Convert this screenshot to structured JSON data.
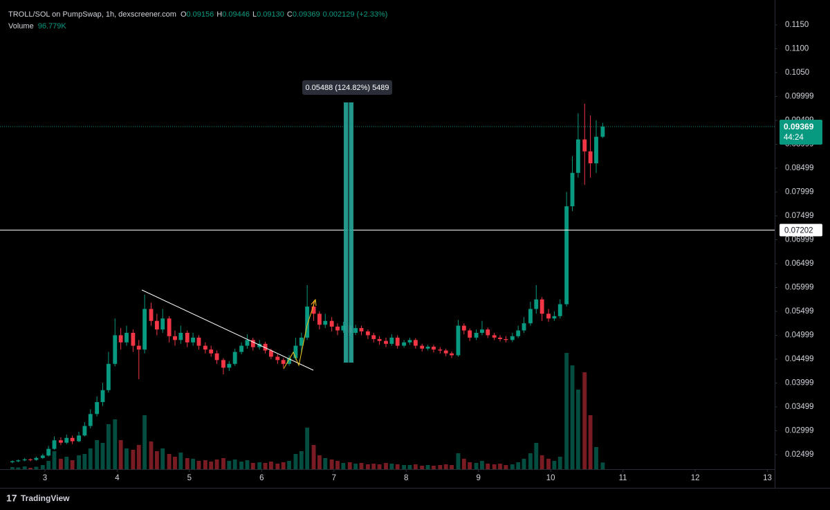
{
  "header": {
    "symbol": "TROLL/SOL on PumpSwap, 1h, dexscreener.com",
    "o_label": "O",
    "o": "0.09156",
    "h_label": "H",
    "h": "0.09446",
    "l_label": "L",
    "l": "0.09130",
    "c_label": "C",
    "c": "0.09369",
    "change": "0.002129 (+2.33%)",
    "volume_label": "Volume",
    "volume_value": "96.779K"
  },
  "chart_data": {
    "type": "candlestick",
    "up_color": "#089981",
    "down_color": "#f23645",
    "xlim": [
      2.474,
      13.1
    ],
    "xticks": [
      3,
      4,
      5,
      6,
      7,
      8,
      9,
      10,
      11,
      12,
      13
    ],
    "ylim": [
      0.02195,
      0.1202
    ],
    "yticks": [
      0.02499,
      0.02999,
      0.03499,
      0.03999,
      0.04499,
      0.04999,
      0.05499,
      0.05999,
      0.06499,
      0.06999,
      0.07499,
      0.07999,
      0.08499,
      0.08999,
      0.09499,
      0.09999,
      {
        "value": 0.105,
        "label": "0.1050"
      },
      {
        "value": 0.11,
        "label": "0.1100"
      },
      {
        "value": 0.115,
        "label": "0.1150"
      }
    ],
    "vlim": [
      0,
      1800000
    ],
    "x": [
      2.55,
      2.63,
      2.72,
      2.8,
      2.88,
      2.97,
      3.05,
      3.13,
      3.22,
      3.3,
      3.38,
      3.47,
      3.55,
      3.63,
      3.72,
      3.8,
      3.88,
      3.97,
      4.05,
      4.13,
      4.22,
      4.3,
      4.38,
      4.47,
      4.55,
      4.63,
      4.72,
      4.8,
      4.88,
      4.97,
      5.05,
      5.13,
      5.22,
      5.3,
      5.38,
      5.47,
      5.55,
      5.63,
      5.72,
      5.8,
      5.88,
      5.97,
      6.05,
      6.13,
      6.22,
      6.3,
      6.38,
      6.47,
      6.55,
      6.63,
      6.72,
      6.8,
      6.88,
      6.97,
      7.05,
      7.13,
      7.22,
      7.3,
      7.38,
      7.47,
      7.55,
      7.63,
      7.72,
      7.8,
      7.88,
      7.97,
      8.05,
      8.13,
      8.22,
      8.3,
      8.38,
      8.47,
      8.55,
      8.63,
      8.72,
      8.8,
      8.88,
      8.97,
      9.05,
      9.13,
      9.22,
      9.3,
      9.38,
      9.47,
      9.55,
      9.63,
      9.72,
      9.8,
      9.88,
      9.97,
      10.05,
      10.13,
      10.22,
      10.3,
      10.38,
      10.47,
      10.55,
      10.63,
      10.72
    ],
    "open": [
      0.0234,
      0.0236,
      0.0238,
      0.024,
      0.0239,
      0.0243,
      0.0248,
      0.0262,
      0.028,
      0.0275,
      0.0285,
      0.0278,
      0.029,
      0.031,
      0.0335,
      0.036,
      0.0385,
      0.044,
      0.05,
      0.0485,
      0.0505,
      0.0478,
      0.047,
      0.0555,
      0.053,
      0.0512,
      0.0535,
      0.0498,
      0.049,
      0.0505,
      0.0485,
      0.0495,
      0.0478,
      0.047,
      0.0462,
      0.0448,
      0.0432,
      0.044,
      0.0465,
      0.0478,
      0.049,
      0.0475,
      0.0482,
      0.0468,
      0.0455,
      0.0448,
      0.044,
      0.0452,
      0.0478,
      0.0495,
      0.056,
      0.0545,
      0.0522,
      0.053,
      0.0518,
      0.051,
      0.052,
      0.0505,
      0.0515,
      0.0508,
      0.05,
      0.0492,
      0.0488,
      0.0482,
      0.0495,
      0.0478,
      0.0485,
      0.049,
      0.0478,
      0.0472,
      0.0476,
      0.047,
      0.0468,
      0.0462,
      0.0458,
      0.052,
      0.051,
      0.0495,
      0.0505,
      0.0512,
      0.05,
      0.0495,
      0.0492,
      0.049,
      0.0498,
      0.051,
      0.0525,
      0.0555,
      0.0575,
      0.0545,
      0.0535,
      0.054,
      0.0565,
      0.077,
      0.084,
      0.091,
      0.0885,
      0.086,
      0.09156
    ],
    "high": [
      0.0238,
      0.024,
      0.0243,
      0.0242,
      0.0246,
      0.0252,
      0.0268,
      0.0288,
      0.0286,
      0.0292,
      0.029,
      0.0298,
      0.0318,
      0.0345,
      0.0372,
      0.04,
      0.0465,
      0.0535,
      0.0515,
      0.052,
      0.0512,
      0.049,
      0.0585,
      0.0568,
      0.0545,
      0.0555,
      0.054,
      0.051,
      0.052,
      0.051,
      0.0505,
      0.05,
      0.0485,
      0.0478,
      0.0468,
      0.0452,
      0.0446,
      0.0472,
      0.0485,
      0.0502,
      0.0495,
      0.049,
      0.0486,
      0.0472,
      0.046,
      0.0452,
      0.0458,
      0.0495,
      0.0505,
      0.0605,
      0.0572,
      0.055,
      0.0545,
      0.0538,
      0.0525,
      0.0528,
      0.0525,
      0.0522,
      0.052,
      0.0512,
      0.0505,
      0.0498,
      0.0495,
      0.0502,
      0.05,
      0.049,
      0.0495,
      0.0494,
      0.0482,
      0.048,
      0.048,
      0.0475,
      0.0472,
      0.0466,
      0.0532,
      0.0525,
      0.0514,
      0.0512,
      0.053,
      0.0516,
      0.0505,
      0.05,
      0.0498,
      0.0505,
      0.052,
      0.0538,
      0.057,
      0.0605,
      0.058,
      0.0555,
      0.055,
      0.0575,
      0.08,
      0.0875,
      0.0965,
      0.0985,
      0.096,
      0.095,
      0.09446
    ],
    "low": [
      0.0232,
      0.0234,
      0.0236,
      0.0236,
      0.0237,
      0.0241,
      0.0246,
      0.026,
      0.027,
      0.0272,
      0.0272,
      0.0276,
      0.0288,
      0.0305,
      0.033,
      0.0352,
      0.038,
      0.0435,
      0.047,
      0.0478,
      0.0465,
      0.0408,
      0.0462,
      0.052,
      0.05,
      0.0505,
      0.0485,
      0.0478,
      0.0482,
      0.0475,
      0.0478,
      0.047,
      0.0462,
      0.0455,
      0.044,
      0.0418,
      0.0425,
      0.0436,
      0.046,
      0.0472,
      0.0468,
      0.047,
      0.0462,
      0.045,
      0.044,
      0.0432,
      0.0436,
      0.0448,
      0.0462,
      0.049,
      0.053,
      0.0512,
      0.0515,
      0.0508,
      0.05,
      0.0505,
      0.0498,
      0.05,
      0.05,
      0.0492,
      0.0485,
      0.048,
      0.0475,
      0.0478,
      0.0472,
      0.0474,
      0.048,
      0.0472,
      0.0466,
      0.0468,
      0.0464,
      0.0462,
      0.0456,
      0.0452,
      0.0455,
      0.0502,
      0.0488,
      0.049,
      0.05,
      0.0494,
      0.049,
      0.0487,
      0.0485,
      0.0486,
      0.0494,
      0.0505,
      0.052,
      0.0545,
      0.053,
      0.0528,
      0.053,
      0.0535,
      0.056,
      0.076,
      0.083,
      0.0815,
      0.083,
      0.084,
      0.0913
    ],
    "close": [
      0.0236,
      0.0238,
      0.024,
      0.0239,
      0.0243,
      0.0248,
      0.0262,
      0.028,
      0.0275,
      0.0285,
      0.0278,
      0.029,
      0.031,
      0.0335,
      0.036,
      0.0385,
      0.044,
      0.05,
      0.0485,
      0.0505,
      0.0478,
      0.047,
      0.0555,
      0.053,
      0.0512,
      0.0535,
      0.0498,
      0.049,
      0.0505,
      0.0485,
      0.0495,
      0.0478,
      0.047,
      0.0462,
      0.0448,
      0.0432,
      0.044,
      0.0465,
      0.0478,
      0.049,
      0.0475,
      0.0482,
      0.0468,
      0.0455,
      0.0448,
      0.044,
      0.0452,
      0.0478,
      0.0495,
      0.056,
      0.0545,
      0.0522,
      0.053,
      0.0518,
      0.051,
      0.052,
      0.0505,
      0.0515,
      0.0508,
      0.05,
      0.0492,
      0.0488,
      0.0482,
      0.0495,
      0.0478,
      0.0485,
      0.049,
      0.0478,
      0.0472,
      0.0476,
      0.047,
      0.0468,
      0.0462,
      0.0458,
      0.052,
      0.051,
      0.0495,
      0.0505,
      0.0512,
      0.05,
      0.0495,
      0.0492,
      0.049,
      0.0498,
      0.051,
      0.0525,
      0.0555,
      0.0575,
      0.0545,
      0.0535,
      0.054,
      0.0565,
      0.077,
      0.084,
      0.091,
      0.0885,
      0.086,
      0.09156,
      0.09369
    ],
    "volume": [
      30000,
      25000,
      40000,
      20000,
      35000,
      60000,
      120000,
      260000,
      150000,
      180000,
      130000,
      200000,
      220000,
      300000,
      420000,
      380000,
      650000,
      720000,
      420000,
      300000,
      280000,
      350000,
      780000,
      400000,
      260000,
      300000,
      220000,
      180000,
      240000,
      160000,
      150000,
      120000,
      130000,
      110000,
      140000,
      160000,
      120000,
      140000,
      110000,
      130000,
      90000,
      100000,
      90000,
      110000,
      80000,
      100000,
      120000,
      220000,
      260000,
      600000,
      350000,
      200000,
      160000,
      140000,
      120000,
      90000,
      100000,
      80000,
      90000,
      70000,
      80000,
      70000,
      90000,
      80000,
      70000,
      60000,
      60000,
      70000,
      50000,
      60000,
      50000,
      60000,
      70000,
      60000,
      230000,
      150000,
      100000,
      90000,
      120000,
      80000,
      70000,
      80000,
      60000,
      70000,
      100000,
      150000,
      230000,
      380000,
      200000,
      150000,
      120000,
      180000,
      1680000,
      1500000,
      1150000,
      1400000,
      780000,
      320000,
      96779
    ],
    "last_price": 0.09369,
    "countdown": "44:24",
    "hline": 0.07202,
    "measure_label": "0.05488 (124.82%) 5489"
  },
  "footer": {
    "brand": "TradingView"
  }
}
